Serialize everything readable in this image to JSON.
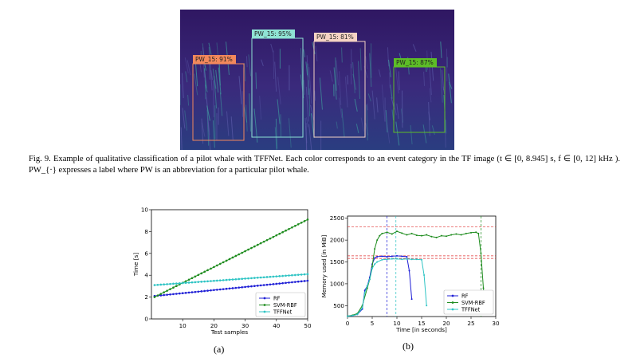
{
  "figure9": {
    "boxes": [
      {
        "label": "PW_15: 91%",
        "color": "#f2885c"
      },
      {
        "label": "PW_15: 95%",
        "color": "#8fe3d4"
      },
      {
        "label": "PW_15: 81%",
        "color": "#f5d3c4"
      },
      {
        "label": "PW_15: 87%",
        "color": "#5dbd27"
      }
    ],
    "caption": "Fig. 9.  Example of qualitative classification of a pilot whale with TFFNet. Each color corresponds to an event category in the TF image (t ∈ [0, 8.945] s, f ∈ [0, 12] kHz ). PW_{·} expresses a label where PW is an abbreviation for a particular pilot whale."
  },
  "subfig_a_label": "(a)",
  "subfig_b_label": "(b)",
  "chart_data": [
    {
      "type": "line",
      "xlabel": "Test samples",
      "ylabel": "Time [s]",
      "xlim": [
        0,
        50
      ],
      "ylim": [
        0,
        10
      ],
      "xticks": [
        10,
        20,
        30,
        40,
        50
      ],
      "yticks": [
        0,
        2,
        4,
        6,
        8,
        10
      ],
      "legend_position": "bottom-right",
      "series": [
        {
          "name": "RF",
          "color": "#1f1fd6",
          "start": 2.1,
          "end": 3.5
        },
        {
          "name": "SVM-RBF",
          "color": "#1e8c1e",
          "start": 2.0,
          "end": 9.1
        },
        {
          "name": "TFFNet",
          "color": "#2ec4c4",
          "start": 3.1,
          "end": 4.1
        }
      ]
    },
    {
      "type": "line",
      "xlabel": "Time [in seconds]",
      "ylabel": "Memory used [in MiB]",
      "xlim": [
        0,
        30
      ],
      "ylim": [
        250,
        2550
      ],
      "xticks": [
        0,
        5,
        10,
        15,
        20,
        25,
        30
      ],
      "yticks": [
        500,
        1000,
        1500,
        2000,
        2500
      ],
      "legend_position": "bottom-right",
      "hlines": [
        2300,
        1640,
        1580
      ],
      "vlines": [
        8,
        9.8,
        27
      ],
      "series": [
        {
          "name": "RF",
          "color": "#1f1fd6",
          "points": [
            [
              0,
              260
            ],
            [
              1,
              270
            ],
            [
              2,
              300
            ],
            [
              3,
              420
            ],
            [
              3.5,
              850
            ],
            [
              4,
              950
            ],
            [
              4.5,
              1150
            ],
            [
              5,
              1450
            ],
            [
              5.5,
              1590
            ],
            [
              6,
              1620
            ],
            [
              7,
              1630
            ],
            [
              8,
              1620
            ],
            [
              9,
              1630
            ],
            [
              10,
              1640
            ],
            [
              11,
              1630
            ],
            [
              12,
              1620
            ],
            [
              12.5,
              1300
            ],
            [
              13,
              650
            ]
          ]
        },
        {
          "name": "SVM-RBF",
          "color": "#1e8c1e",
          "points": [
            [
              0,
              260
            ],
            [
              1,
              280
            ],
            [
              2,
              320
            ],
            [
              3,
              500
            ],
            [
              4,
              900
            ],
            [
              4.5,
              1100
            ],
            [
              5,
              1400
            ],
            [
              5.5,
              1800
            ],
            [
              6,
              2000
            ],
            [
              6.5,
              2100
            ],
            [
              7,
              2150
            ],
            [
              8,
              2180
            ],
            [
              9,
              2140
            ],
            [
              10,
              2200
            ],
            [
              11,
              2160
            ],
            [
              12,
              2120
            ],
            [
              13,
              2150
            ],
            [
              14,
              2110
            ],
            [
              15,
              2100
            ],
            [
              16,
              2120
            ],
            [
              17,
              2080
            ],
            [
              18,
              2060
            ],
            [
              19,
              2100
            ],
            [
              20,
              2090
            ],
            [
              21,
              2120
            ],
            [
              22,
              2140
            ],
            [
              23,
              2120
            ],
            [
              24,
              2150
            ],
            [
              25,
              2170
            ],
            [
              26,
              2180
            ],
            [
              26.5,
              2150
            ],
            [
              27,
              1700
            ],
            [
              27.5,
              900
            ],
            [
              28,
              350
            ]
          ]
        },
        {
          "name": "TFFNet",
          "color": "#2ec4c4",
          "points": [
            [
              0,
              260
            ],
            [
              1,
              270
            ],
            [
              2,
              300
            ],
            [
              3,
              450
            ],
            [
              3.5,
              800
            ],
            [
              4,
              950
            ],
            [
              4.5,
              1100
            ],
            [
              5,
              1350
            ],
            [
              5.5,
              1450
            ],
            [
              6,
              1500
            ],
            [
              7,
              1550
            ],
            [
              8,
              1560
            ],
            [
              9,
              1570
            ],
            [
              10,
              1570
            ],
            [
              11,
              1560
            ],
            [
              12,
              1570
            ],
            [
              13,
              1560
            ],
            [
              14,
              1560
            ],
            [
              15,
              1550
            ],
            [
              15.5,
              1200
            ],
            [
              16,
              500
            ]
          ]
        }
      ]
    }
  ]
}
